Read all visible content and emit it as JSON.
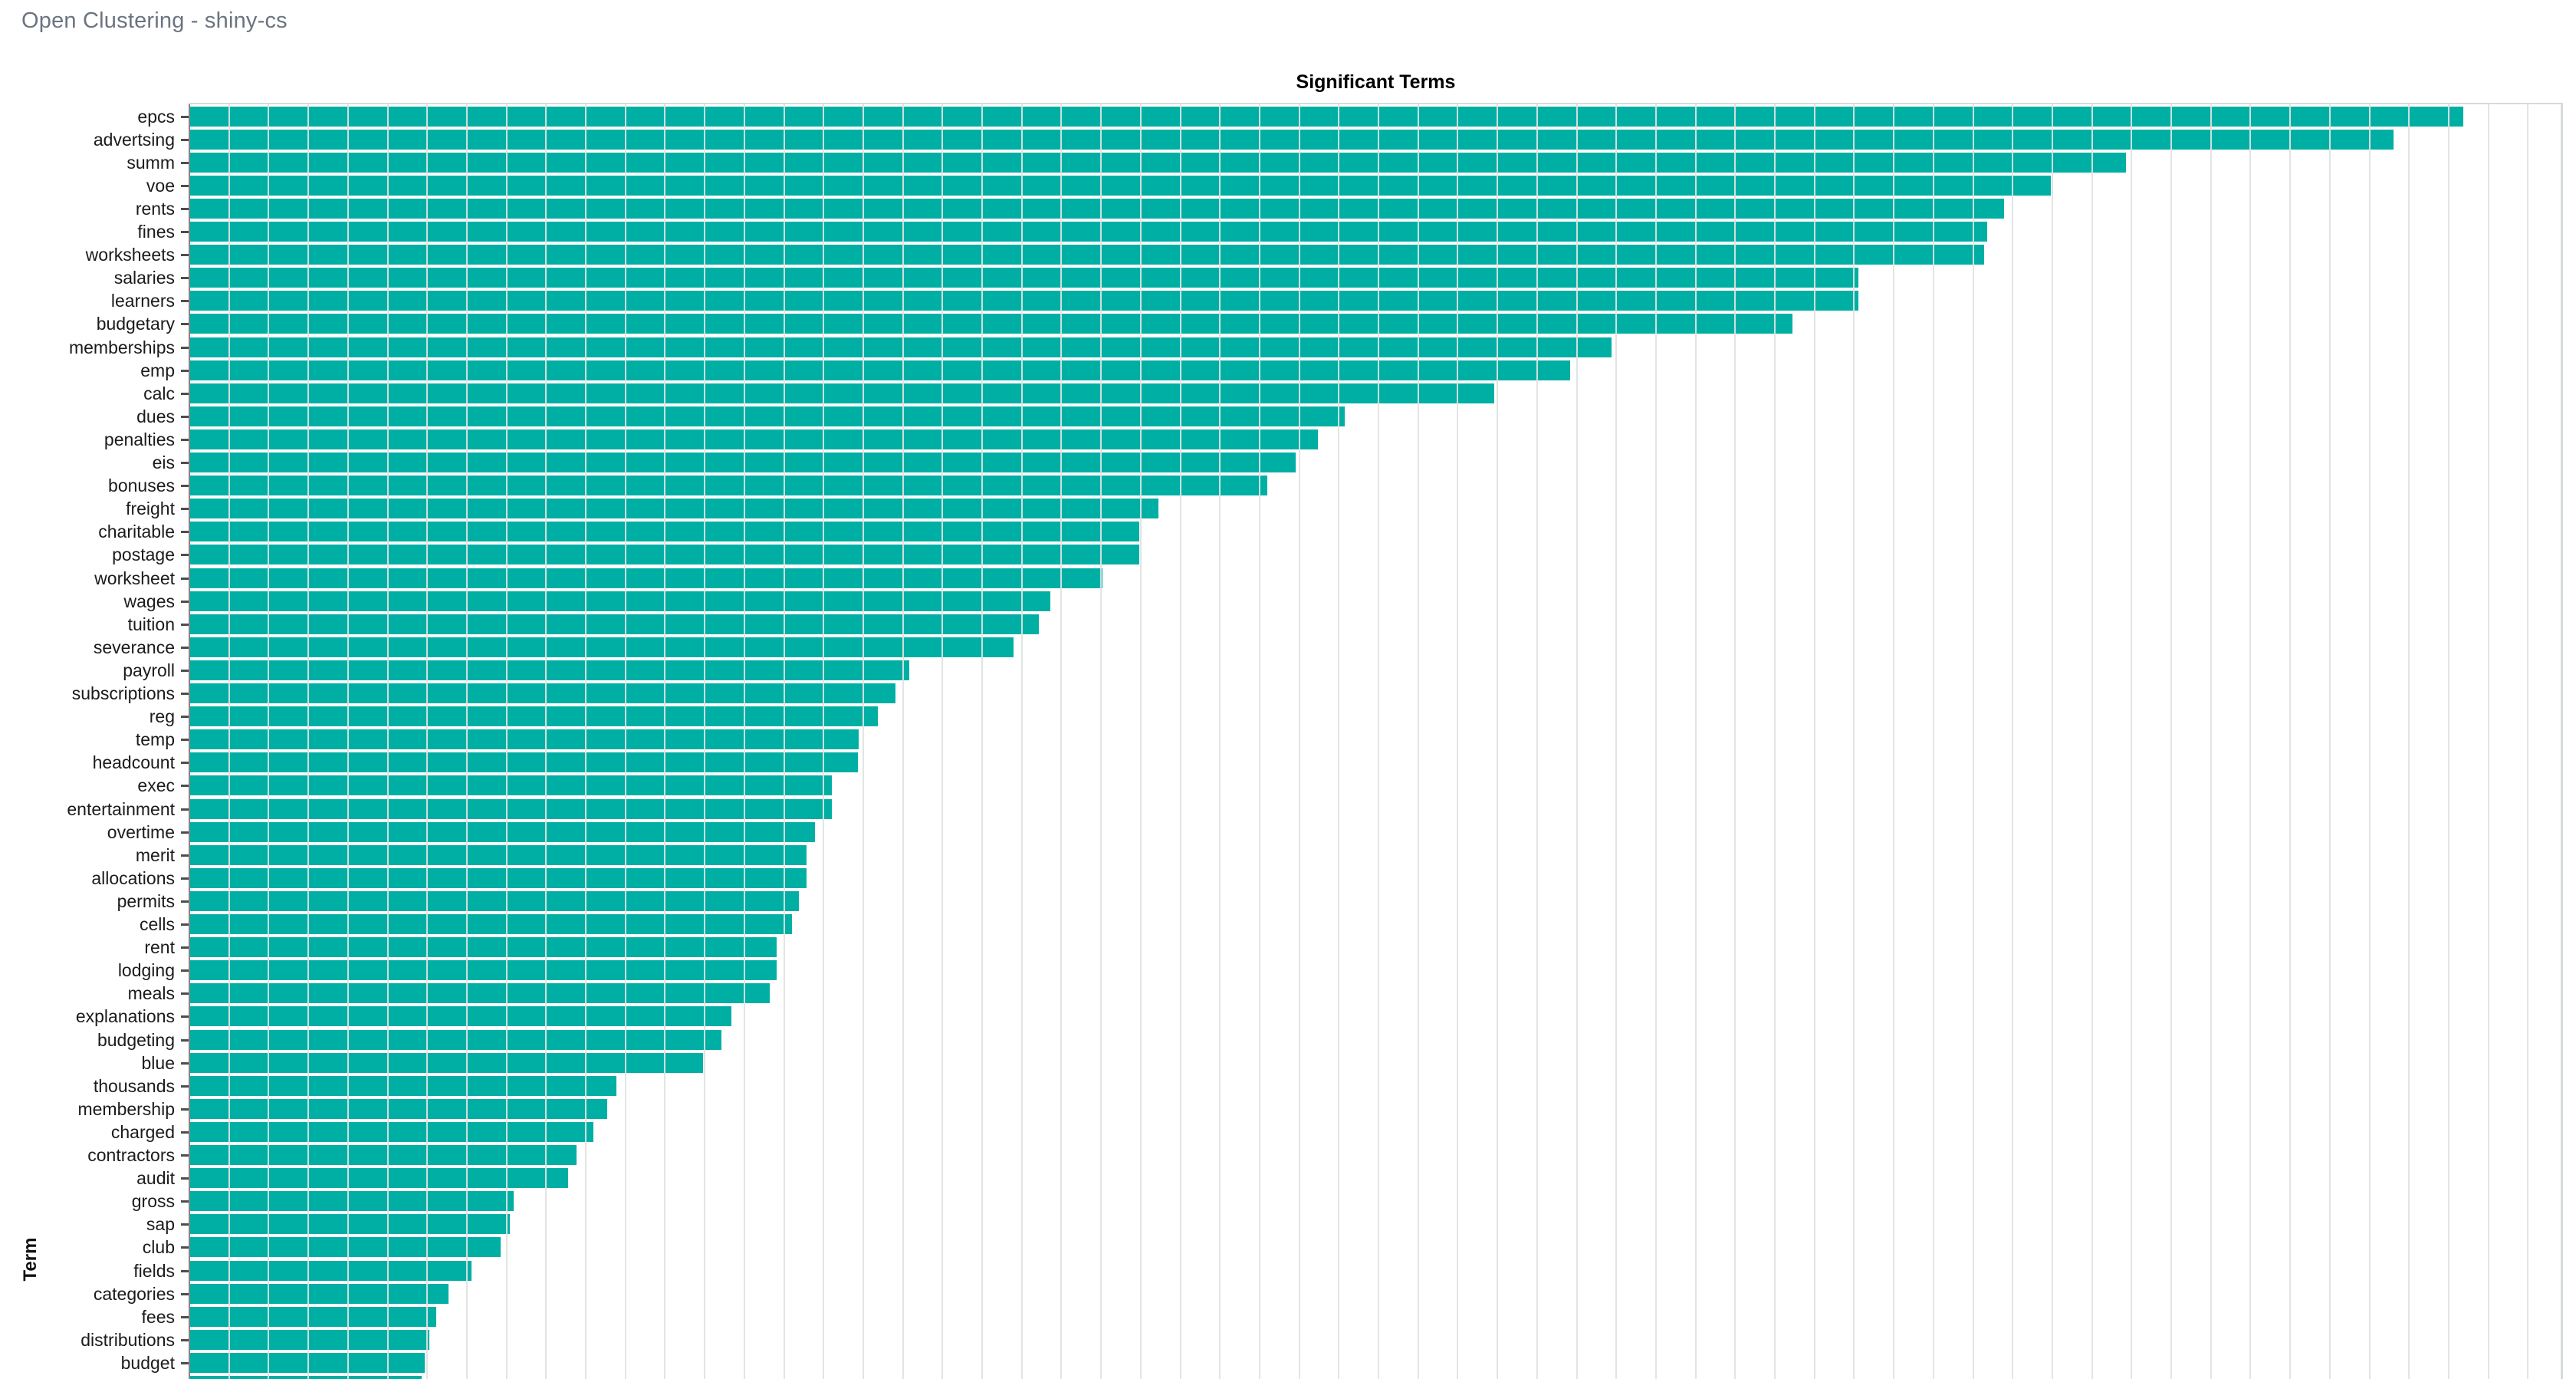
{
  "app": {
    "header_title": "Open Clustering - shiny-cs"
  },
  "chart": {
    "title": "Significant Terms",
    "y_axis_title": "Term",
    "colors": {
      "bar": "#00afa3",
      "gridline": "#dfe3e2",
      "panel_border": "#d7dbda",
      "axis_line": "#858585",
      "header_text": "#6b7480",
      "label_text": "#1b1b1b"
    }
  },
  "chart_data": {
    "type": "bar",
    "orientation": "horizontal",
    "title": "Significant Terms",
    "xlabel": "",
    "ylabel": "Term",
    "legend": "none",
    "grid": "vertical-gridlines-over-bars",
    "x_axis_tick_labels_visible": false,
    "note": "x-axis numeric scale is cut off below the visible viewport; bar lengths are recorded as fractions of the plot-area width. A 56th bar and its label are partially cut at the bottom edge.",
    "categories": [
      "epcs",
      "advertsing",
      "summ",
      "voe",
      "rents",
      "fines",
      "worksheets",
      "salaries",
      "learners",
      "budgetary",
      "memberships",
      "emp",
      "calc",
      "dues",
      "penalties",
      "eis",
      "bonuses",
      "freight",
      "charitable",
      "postage",
      "worksheet",
      "wages",
      "tuition",
      "severance",
      "payroll",
      "subscriptions",
      "reg",
      "temp",
      "headcount",
      "exec",
      "entertainment",
      "overtime",
      "merit",
      "allocations",
      "permits",
      "cells",
      "rent",
      "lodging",
      "meals",
      "explanations",
      "budgeting",
      "blue",
      "thousands",
      "membership",
      "charged",
      "contractors",
      "audit",
      "gross",
      "sap",
      "club",
      "fields",
      "categories",
      "fees",
      "distributions",
      "budget"
    ],
    "values_frac_of_plot_width": [
      0.958,
      0.9286,
      0.8159,
      0.7843,
      0.7646,
      0.7575,
      0.7562,
      0.7032,
      0.7032,
      0.6755,
      0.5993,
      0.5819,
      0.5499,
      0.4869,
      0.4756,
      0.4663,
      0.4543,
      0.4084,
      0.4004,
      0.4004,
      0.3849,
      0.3629,
      0.3581,
      0.3474,
      0.3035,
      0.2977,
      0.2903,
      0.2822,
      0.2819,
      0.2709,
      0.2709,
      0.2638,
      0.2602,
      0.2602,
      0.257,
      0.2541,
      0.2477,
      0.2477,
      0.2448,
      0.2286,
      0.2244,
      0.2167,
      0.1802,
      0.1763,
      0.1705,
      0.1634,
      0.1598,
      0.1369,
      0.1353,
      0.1314,
      0.1192,
      0.1095,
      0.1043,
      0.1014,
      0.0994
    ],
    "partial_bottom_bar": {
      "label_visible": false,
      "frac": 0.098
    }
  }
}
